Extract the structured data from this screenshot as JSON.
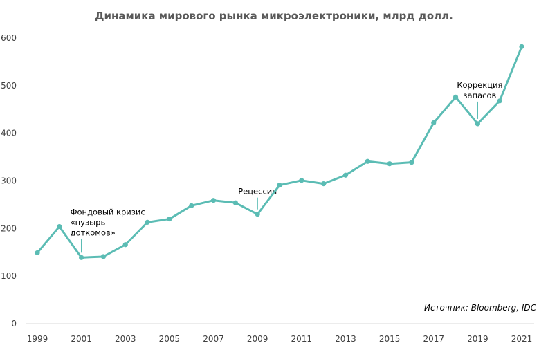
{
  "chart_data": {
    "type": "line",
    "title": "Динамика мирового рынка микроэлектроники, млрд долл.",
    "xlabel": "",
    "ylabel": "",
    "source": "Источник: Bloomberg, IDC",
    "x": [
      1999,
      2000,
      2001,
      2002,
      2003,
      2004,
      2005,
      2006,
      2007,
      2008,
      2009,
      2010,
      2011,
      2012,
      2013,
      2014,
      2015,
      2016,
      2017,
      2018,
      2019,
      2020,
      2021
    ],
    "x_tick_labels": [
      "1999",
      "2001",
      "2003",
      "2005",
      "2007",
      "2009",
      "2011",
      "2013",
      "2015",
      "2017",
      "2019",
      "2021"
    ],
    "y_tick_labels": [
      "0",
      "100",
      "200",
      "300",
      "400",
      "500",
      "600"
    ],
    "xlim": [
      1999,
      2021
    ],
    "ylim": [
      0,
      600
    ],
    "grid": false,
    "line_color": "#5bbcb4",
    "series": [
      {
        "values": [
          149,
          204,
          139,
          141,
          166,
          213,
          220,
          248,
          259,
          254,
          230,
          291,
          301,
          294,
          312,
          341,
          336,
          339,
          422,
          476,
          420,
          468,
          582
        ]
      }
    ],
    "annotations": [
      {
        "x": 2001,
        "y": 139,
        "lines": [
          "Фондовый кризис",
          "«пузырь",
          "доткомов»"
        ]
      },
      {
        "x": 2009,
        "y": 230,
        "lines": [
          "Рецессия"
        ]
      },
      {
        "x": 2019,
        "y": 420,
        "lines": [
          "Коррекция",
          "запасов"
        ]
      }
    ]
  }
}
